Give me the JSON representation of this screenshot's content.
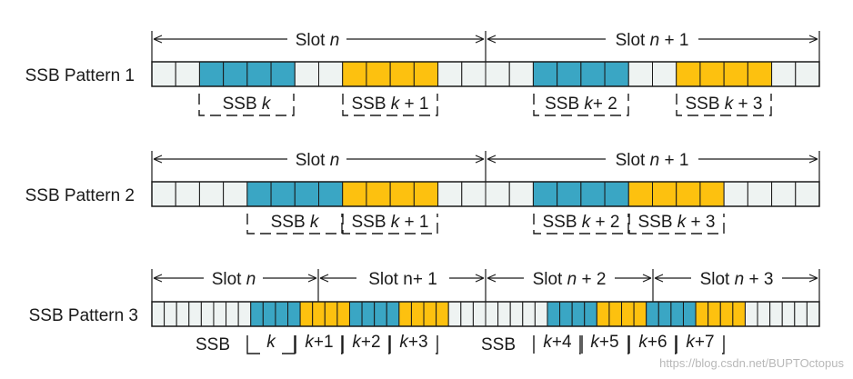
{
  "colors": {
    "blue": "#3aa6c4",
    "yellow": "#fdc10f",
    "empty": "#eef3f2",
    "ink": "#1a1a1a"
  },
  "watermark": "https://blog.csdn.net/BUPTOctopus",
  "patterns": [
    {
      "label": "SSB Pattern 1",
      "slot_labels": [
        [
          "Slot ",
          "n",
          ""
        ],
        [
          "Slot  ",
          "n",
          " + 1"
        ]
      ],
      "cells": "00BBBB00YYYY0000BBBB00YYYY00",
      "ssb_labels": [
        [
          "SSB  ",
          "k",
          ""
        ],
        [
          "SSB ",
          "k",
          " + 1"
        ],
        [
          "SSB ",
          "k",
          "+ 2"
        ],
        [
          "SSB ",
          "k",
          " + 3"
        ]
      ]
    },
    {
      "label": "SSB Pattern 2",
      "slot_labels": [
        [
          "Slot ",
          "n",
          ""
        ],
        [
          "Slot  ",
          "n",
          " + 1"
        ]
      ],
      "cells": "0000BBBBYYYY0000BBBBYYYY0000",
      "ssb_labels": [
        [
          "SSB  ",
          "k",
          ""
        ],
        [
          "SSB ",
          "k",
          " + 1"
        ],
        [
          "SSB ",
          "k",
          " + 2"
        ],
        [
          "SSB ",
          "k",
          " + 3"
        ]
      ]
    },
    {
      "label": "SSB Pattern 3",
      "slot_labels": [
        [
          "Slot ",
          "n",
          ""
        ],
        [
          "Slot   ",
          "n+ 1",
          ""
        ],
        [
          "Slot  ",
          "n",
          " + 2"
        ],
        [
          "Slot  ",
          "n",
          " + 3"
        ]
      ],
      "cells": "00000000BBBBYYYYBBBBYYYY00000000BBBBYYYYBBBBYYYY000000",
      "ssb_word": [
        "SSB",
        "SSB"
      ],
      "ssb_labels": [
        [
          "",
          "k",
          ""
        ],
        [
          "",
          "k",
          "+1"
        ],
        [
          "",
          "k",
          "+2"
        ],
        [
          "",
          "k",
          "+3"
        ],
        [
          "",
          "k",
          "+4"
        ],
        [
          "",
          "k",
          "+5"
        ],
        [
          "",
          "k",
          "+6"
        ],
        [
          "",
          "k",
          "+7"
        ]
      ]
    }
  ]
}
